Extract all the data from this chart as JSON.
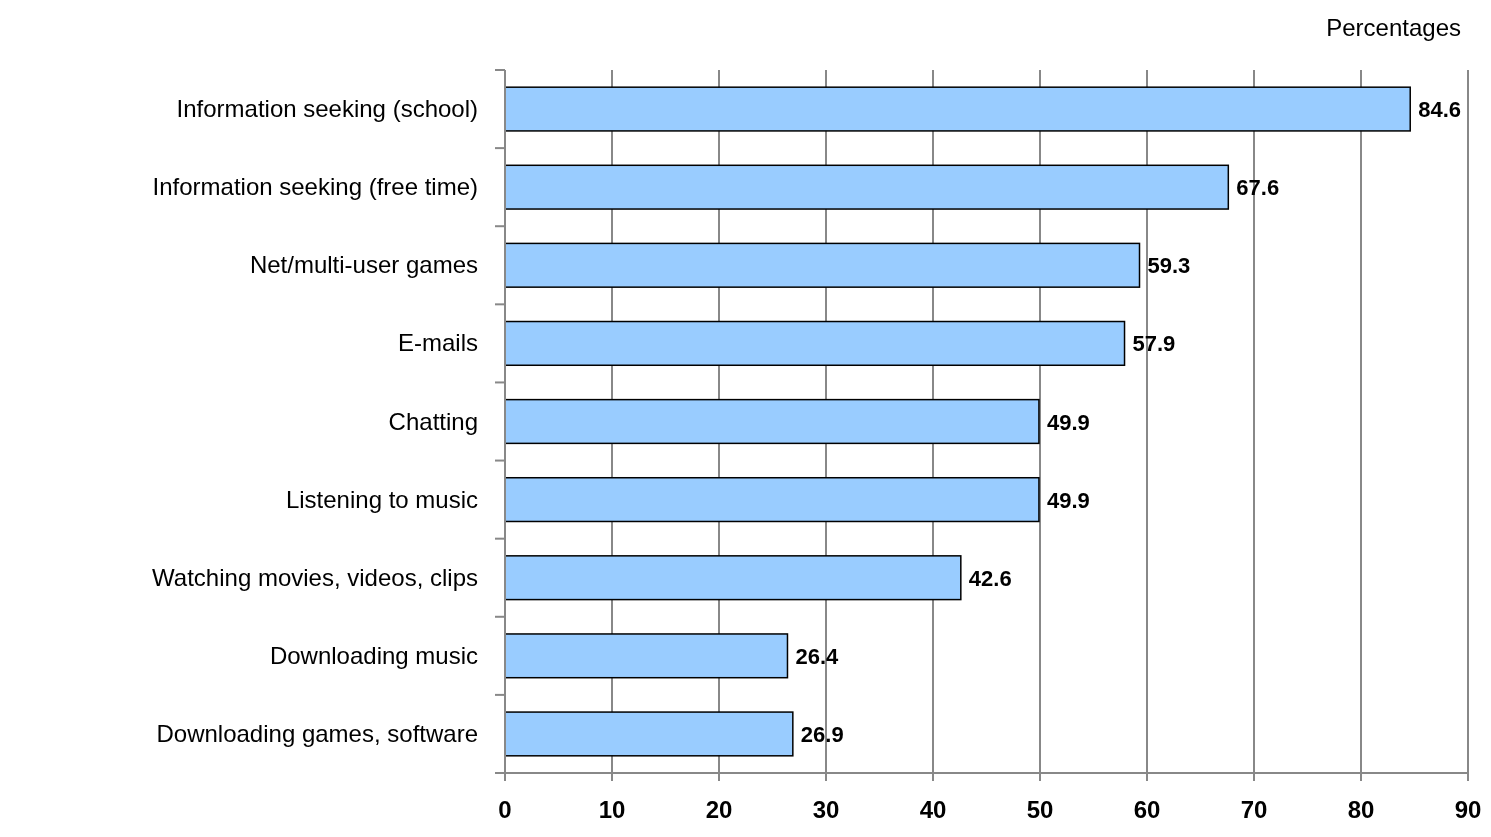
{
  "chart_data": {
    "type": "bar",
    "orientation": "horizontal",
    "xlabel": "Percentages",
    "categories": [
      "Information seeking (school)",
      "Information seeking (free time)",
      "Net/multi-user games",
      "E-mails",
      "Chatting",
      "Listening to music",
      "Watching movies, videos, clips",
      "Downloading music",
      "Downloading games, software"
    ],
    "values": [
      84.6,
      67.6,
      59.3,
      57.9,
      49.9,
      49.9,
      42.6,
      26.4,
      26.9
    ],
    "color": "#99ccff",
    "data_labels": true,
    "xlim": [
      0,
      90
    ],
    "xticks": [
      0,
      10,
      20,
      30,
      40,
      50,
      60,
      70,
      80,
      90
    ],
    "grid": "x"
  }
}
